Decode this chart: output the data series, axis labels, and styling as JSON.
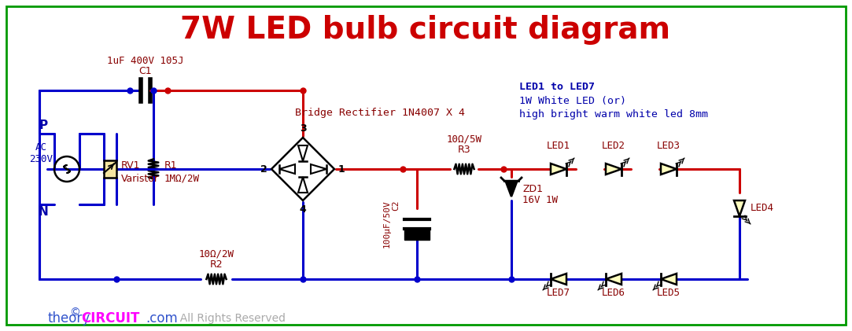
{
  "title": "7W LED bulb circuit diagram",
  "title_color": "#cc0000",
  "title_fontsize": 28,
  "bg_color": "#ffffff",
  "wire_color_blue": "#0000cc",
  "wire_color_red": "#cc0000",
  "wire_color_black": "#000000",
  "component_color": "#000000",
  "label_color_red": "#880000",
  "label_color_blue": "#0000aa",
  "footer_theory": "theory",
  "footer_circuit": "CIRCUIT",
  "footer_com": ".com",
  "footer_rights": "  All Rights Reserved",
  "footer_theory_color": "#3355cc",
  "footer_circuit_color": "#ff00ff",
  "footer_com_color": "#3355cc",
  "footer_rights_color": "#aaaaaa",
  "copyright_color": "#3355cc",
  "led_info_line1": "LED1 to LED7",
  "led_info_line2": "1W White LED (or)",
  "led_info_line3": "high bright warm white led 8mm",
  "bridge_label": "Bridge Rectifier 1N4007 X 4",
  "c1_label": "C1",
  "c1_val": "1uF 400V 105J",
  "r1_label": "R1",
  "r1_val": "1MΩ/2W",
  "r2_label": "R2",
  "r2_val": "10Ω/2W",
  "r3_label": "R3",
  "r3_val": "10Ω/5W",
  "c2_label": "C2",
  "c2_val": "100μF/50V",
  "zd1_label": "ZD1",
  "zd1_val": "16V 1W",
  "rv1_label": "RV1",
  "rv1_val": "Varistor",
  "ac_label": "AC\n230V",
  "p_label": "P",
  "n_label": "N"
}
